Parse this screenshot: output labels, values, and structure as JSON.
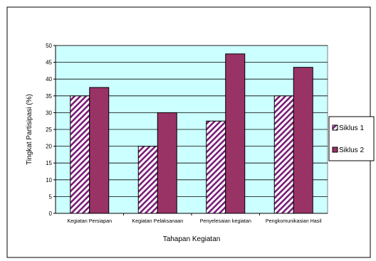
{
  "chart_data": {
    "type": "bar",
    "title": "",
    "xlabel": "Tahapan Kegiatan",
    "ylabel": "Tingkat Partisipasi (%)",
    "ylim": [
      0,
      50
    ],
    "yticks": [
      "0",
      "5",
      "10",
      "15",
      "20",
      "25",
      "30",
      "35",
      "40",
      "45",
      "50"
    ],
    "grid": true,
    "legend_position": "right",
    "categories": [
      "Kegiatan Persiapan",
      "Kegiatan Pelaksanaan",
      "Penyelesaian kegiatan",
      "Pengkomunikasian Hasil"
    ],
    "series": [
      {
        "name": "Siklus 1",
        "values": [
          35,
          20,
          27.5,
          35
        ],
        "fill": "hatch",
        "color": "#7a1e7a"
      },
      {
        "name": "Siklus 2",
        "values": [
          37.5,
          30,
          47.5,
          43.5
        ],
        "fill": "solid",
        "color": "#993366"
      }
    ],
    "plot_background": "#ccffff"
  }
}
